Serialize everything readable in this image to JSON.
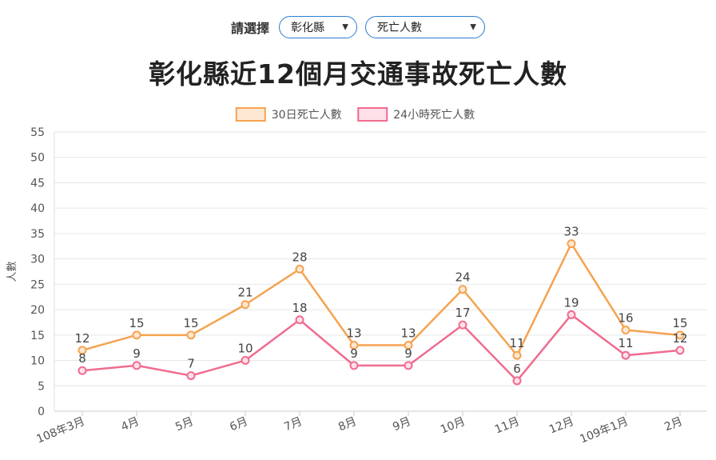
{
  "selector": {
    "label": "請選擇",
    "county_value": "彰化縣",
    "metric_value": "死亡人數",
    "caret_icon": "chevron-down-icon"
  },
  "title": "彰化縣近12個月交通事故死亡人數",
  "chart_data": {
    "type": "line",
    "title": "彰化縣近12個月交通事故死亡人數",
    "ylabel": "人數",
    "xlabel": "",
    "ylim": [
      0,
      55
    ],
    "yticks": [
      0,
      5,
      10,
      15,
      20,
      25,
      30,
      35,
      40,
      45,
      50,
      55
    ],
    "grid": true,
    "legend_position": "top-center",
    "categories": [
      "108年3月",
      "4月",
      "5月",
      "6月",
      "7月",
      "8月",
      "9月",
      "10月",
      "11月",
      "12月",
      "109年1月",
      "2月"
    ],
    "series": [
      {
        "name": "30日死亡人數",
        "color": "#f5a351",
        "fill": "#fde8d3",
        "values": [
          12,
          15,
          15,
          21,
          28,
          13,
          13,
          24,
          11,
          33,
          16,
          15
        ]
      },
      {
        "name": "24小時死亡人數",
        "color": "#f06c8f",
        "fill": "#fde0e8",
        "values": [
          8,
          9,
          7,
          10,
          18,
          9,
          9,
          17,
          6,
          19,
          11,
          12
        ]
      }
    ]
  }
}
